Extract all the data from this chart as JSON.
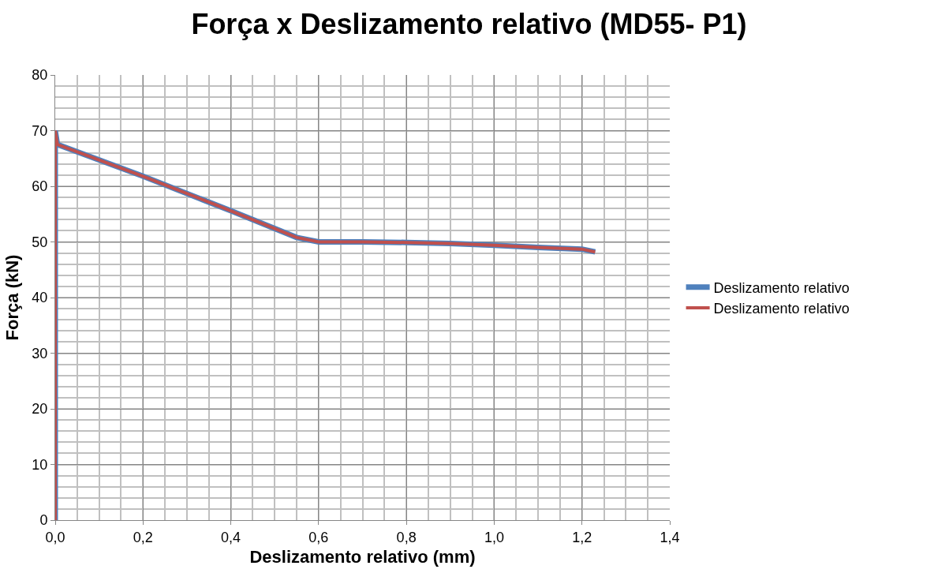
{
  "chart_data": {
    "type": "line",
    "title": "Força x Deslizamento relativo (MD55- P1)",
    "xlabel": "Deslizamento relativo (mm)",
    "ylabel": "Força (kN)",
    "series": [
      {
        "name": "Deslizamento relativo",
        "color": "#4f81bd",
        "x": [
          0,
          0,
          0.005,
          0.2,
          0.4,
          0.55,
          0.6,
          0.7,
          0.8,
          0.9,
          1.0,
          1.1,
          1.2,
          1.23
        ],
        "values": [
          0,
          70,
          67.5,
          61.8,
          55.6,
          50.8,
          50.0,
          50.0,
          49.9,
          49.7,
          49.4,
          49.0,
          48.7,
          48.2
        ]
      },
      {
        "name": "Deslizamento relativo",
        "color": "#c0504d",
        "x": [
          0,
          0,
          0.005,
          0.2,
          0.4,
          0.55,
          0.6,
          0.7,
          0.8,
          0.9,
          1.0,
          1.1,
          1.2,
          1.23
        ],
        "values": [
          0,
          70,
          67.5,
          61.8,
          55.6,
          50.8,
          50.0,
          50.0,
          49.9,
          49.7,
          49.4,
          49.0,
          48.7,
          48.2
        ]
      }
    ],
    "xlim": [
      0,
      1.4
    ],
    "xticks": [
      {
        "value": 0,
        "label": "0,0"
      },
      {
        "value": 0.2,
        "label": "0,2"
      },
      {
        "value": 0.4,
        "label": "0,4"
      },
      {
        "value": 0.6,
        "label": "0,6"
      },
      {
        "value": 0.8,
        "label": "0,8"
      },
      {
        "value": 1.0,
        "label": "1,0"
      },
      {
        "value": 1.2,
        "label": "1,2"
      },
      {
        "value": 1.4,
        "label": "1,4"
      }
    ],
    "ylim": [
      0,
      80
    ],
    "yticks": [
      0,
      10,
      20,
      30,
      40,
      50,
      60,
      70,
      80
    ],
    "grid": true,
    "legend": "right",
    "marker": "none",
    "line_style": "solid"
  }
}
